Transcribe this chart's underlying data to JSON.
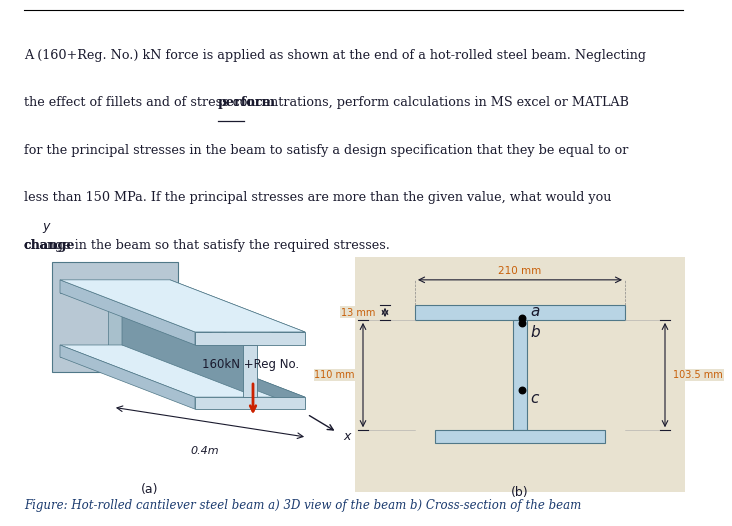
{
  "line1": "A (160+Reg. No.) kN force is applied as shown at the end of a hot-rolled steel beam. Neglecting",
  "line2_pre": "the effect of fillets and of stress concentrations, ",
  "line2_bold": "perform",
  "line2_post": " calculations in MS excel or MATLAB",
  "line3": "for the principal stresses in the beam to satisfy a design specification that they be equal to or",
  "line4": "less than 150 MPa. If the principal stresses are more than the given value, what would you",
  "line5_bold": "change",
  "line5_post": " in the beam so that satisfy the required stresses.",
  "figure_caption": "Figure: Hot-rolled cantilever steel beam a) 3D view of the beam b) Cross-section of the beam",
  "label_a": "(a)",
  "label_b": "(b)",
  "force_label": "160kN +Reg No.",
  "dim_210": "210 mm",
  "dim_13": "13 mm",
  "dim_110": "110 mm",
  "dim_1035": "103.5 mm",
  "dim_04": "0.4m",
  "text_color": "#1a1a2e",
  "orange_text": "#c8600a",
  "caption_color": "#1a3a6e",
  "beam_light": "#ccdde8",
  "beam_mid": "#a8c0d0",
  "beam_dark": "#7898a8",
  "beam_top": "#ddeef8",
  "wall_color": "#b8c8d4",
  "cs_bg": "#e8e2d0",
  "cs_beam_fill": "#b8d4e4",
  "cs_beam_edge": "#507888",
  "fontsize_body": 9.2,
  "fontsize_dim": 7.0,
  "fontsize_label": 9.0
}
